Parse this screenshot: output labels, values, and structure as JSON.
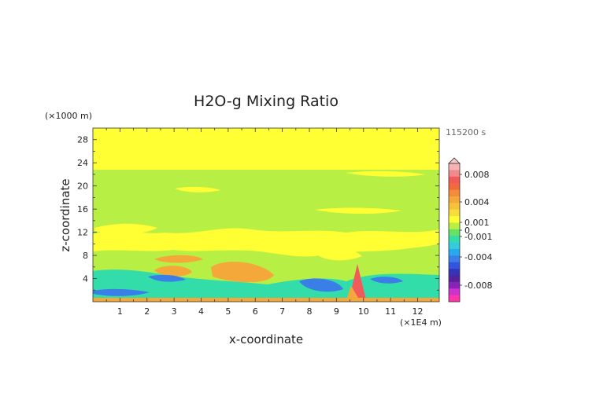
{
  "chart_data": {
    "type": "heatmap",
    "title": "H2O-g Mixing Ratio",
    "xlabel": "x-coordinate",
    "ylabel": "z-coordinate",
    "x_unit": "(×1E4 m)",
    "y_unit": "(×1000 m)",
    "time_label": "115200 s",
    "xlim": [
      0,
      12.8
    ],
    "ylim": [
      0,
      30
    ],
    "x_ticks": [
      "1",
      "2",
      "3",
      "4",
      "5",
      "6",
      "7",
      "8",
      "9",
      "10",
      "11",
      "12"
    ],
    "y_ticks": [
      "4",
      "8",
      "12",
      "16",
      "20",
      "24",
      "28"
    ],
    "colorbar": {
      "labels": [
        "0.008",
        "0.004",
        "0.001",
        "0",
        "-0.001",
        "-0.004",
        "-0.008"
      ],
      "colors_top_to_bottom": [
        "#f7b3b3",
        "#f08a8a",
        "#ef5a5a",
        "#f06a3a",
        "#f28c3c",
        "#f4a83a",
        "#f6c23a",
        "#f8dc3a",
        "#ffff33",
        "#b8ef44",
        "#66e066",
        "#33ddaa",
        "#33ccdd",
        "#2aa8ee",
        "#3a7ee8",
        "#3355dd",
        "#3333bb",
        "#552299",
        "#8822bb",
        "#cc33cc",
        "#ff33aa"
      ]
    },
    "regions": [
      {
        "level": "0 to 0.001",
        "color": "#ffff33",
        "desc": "background"
      },
      {
        "level": "-0.001 to 0",
        "color": "#b8ef44"
      },
      {
        "level": "0.001 to 0.004",
        "color": "#f4a83a"
      },
      {
        "level": "-0.004 to -0.001",
        "color": "#33ddaa"
      },
      {
        "level": "< -0.004",
        "color": "#3a7ee8"
      },
      {
        "level": "> 0.004",
        "color": "#ef5a5a"
      }
    ]
  }
}
